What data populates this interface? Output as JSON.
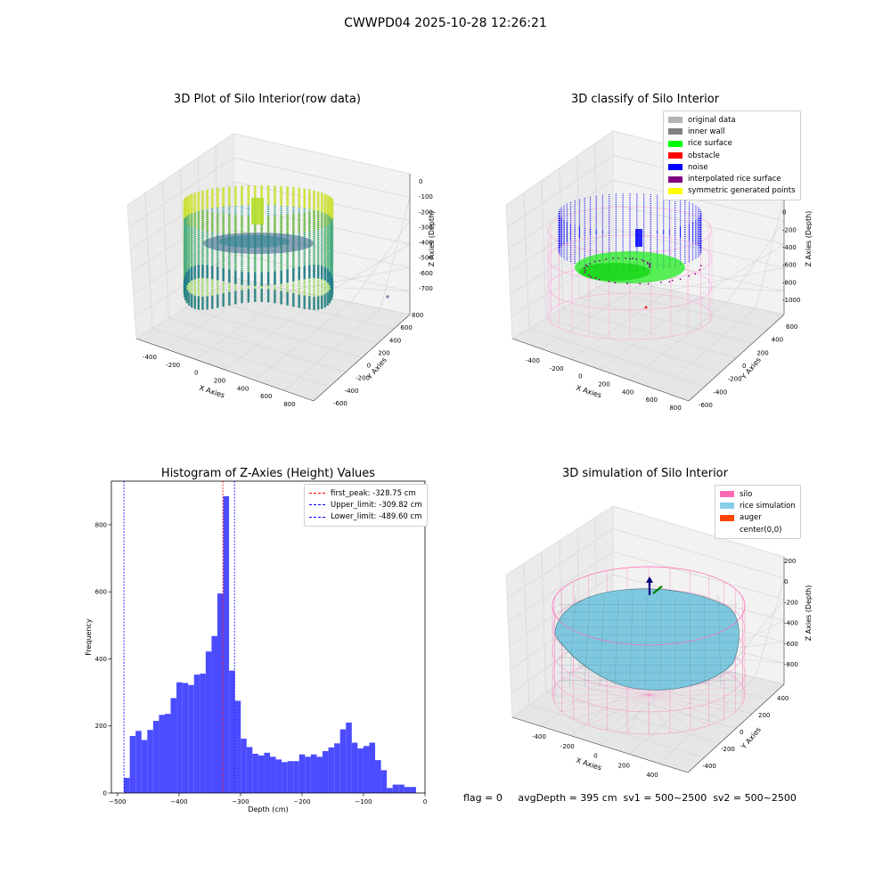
{
  "suptitle": "CWWPD04 2025-10-28 12:26:21",
  "panels": {
    "raw": {
      "title": "3D Plot of Silo Interior(row data)",
      "xlabel": "X Axies",
      "ylabel": "Y Axies",
      "zlabel": "Z Axies (Depth)",
      "xticks": [
        "-400",
        "-200",
        "0",
        "200",
        "400",
        "600",
        "800"
      ],
      "yticks": [
        "-600",
        "-400",
        "-200",
        "0",
        "200",
        "400",
        "600",
        "800"
      ],
      "zticks": [
        "0",
        "-100",
        "-200",
        "-300",
        "-400",
        "-500",
        "-600",
        "-700"
      ]
    },
    "classify": {
      "title": "3D classify of Silo Interior",
      "xlabel": "X Axies",
      "ylabel": "Y Axies",
      "zlabel": "Z Axies (Depth)",
      "xticks": [
        "-400",
        "-200",
        "0",
        "200",
        "400",
        "600",
        "800"
      ],
      "yticks": [
        "-600",
        "-400",
        "-200",
        "0",
        "200",
        "400",
        "600"
      ],
      "zticks": [
        "200",
        "0",
        "-200",
        "-400",
        "-600",
        "-800",
        "-1000"
      ],
      "legend": [
        {
          "label": "original data",
          "color": "#b3b3b3"
        },
        {
          "label": "inner wall",
          "color": "#808080"
        },
        {
          "label": "rice surface",
          "color": "#00ff00"
        },
        {
          "label": "obstacle",
          "color": "#ff0000"
        },
        {
          "label": "noise",
          "color": "#0000ff"
        },
        {
          "label": "interpolated rice surface",
          "color": "#800080"
        },
        {
          "label": "symmetric generated points",
          "color": "#ffff00"
        }
      ]
    },
    "simulation": {
      "title": "3D simulation of Silo Interior",
      "xlabel": "X Axies",
      "ylabel": "Y Axies",
      "zlabel": "Z Axies (Depth)",
      "xticks": [
        "-400",
        "-200",
        "0",
        "200",
        "400"
      ],
      "yticks": [
        "-400",
        "-200",
        "0",
        "200",
        "400"
      ],
      "zticks": [
        "200",
        "0",
        "-200",
        "-400",
        "-600",
        "-800"
      ],
      "legend": [
        {
          "label": "silo",
          "color": "#ff69b4"
        },
        {
          "label": "rice simulation",
          "color": "#87ceeb"
        },
        {
          "label": "auger",
          "color": "#ff4500"
        },
        {
          "label": "center(0,0)",
          "color": "#ffffff"
        }
      ]
    }
  },
  "chart_data": {
    "type": "bar",
    "title": "Histogram of Z-Axies (Height) Values",
    "xlabel": "Depth (cm)",
    "ylabel": "Frequency",
    "xlim": [
      -510,
      0
    ],
    "ylim": [
      0,
      930
    ],
    "xticks": [
      -500,
      -400,
      -300,
      -200,
      -100,
      0
    ],
    "xtick_labels": [
      "−500",
      "−400",
      "−300",
      "−200",
      "−100",
      "0"
    ],
    "yticks": [
      0,
      200,
      400,
      600,
      800
    ],
    "bar_color": "#4b4bff",
    "bin_start": -489.6,
    "bin_width": 9.5,
    "values": [
      45,
      170,
      185,
      158,
      188,
      215,
      233,
      236,
      283,
      330,
      328,
      322,
      353,
      356,
      422,
      468,
      595,
      885,
      365,
      275,
      162,
      137,
      117,
      112,
      120,
      108,
      100,
      92,
      95,
      95,
      115,
      108,
      115,
      108,
      125,
      136,
      148,
      190,
      210,
      150,
      133,
      140,
      150,
      98,
      68,
      15,
      25,
      25,
      18,
      18
    ],
    "vlines": [
      {
        "label": "first_peak: -328.75 cm",
        "x": -328.75,
        "color": "#ff0000"
      },
      {
        "label": "Upper_limit: -309.82 cm",
        "x": -309.82,
        "color": "#0000ff"
      },
      {
        "label": "Lower_limit: -489.60 cm",
        "x": -489.6,
        "color": "#0000ff"
      }
    ]
  },
  "footer": {
    "text": "flag = 0     avgDepth = 395 cm  sv1 = 500~2500  sv2 = 500~2500"
  }
}
